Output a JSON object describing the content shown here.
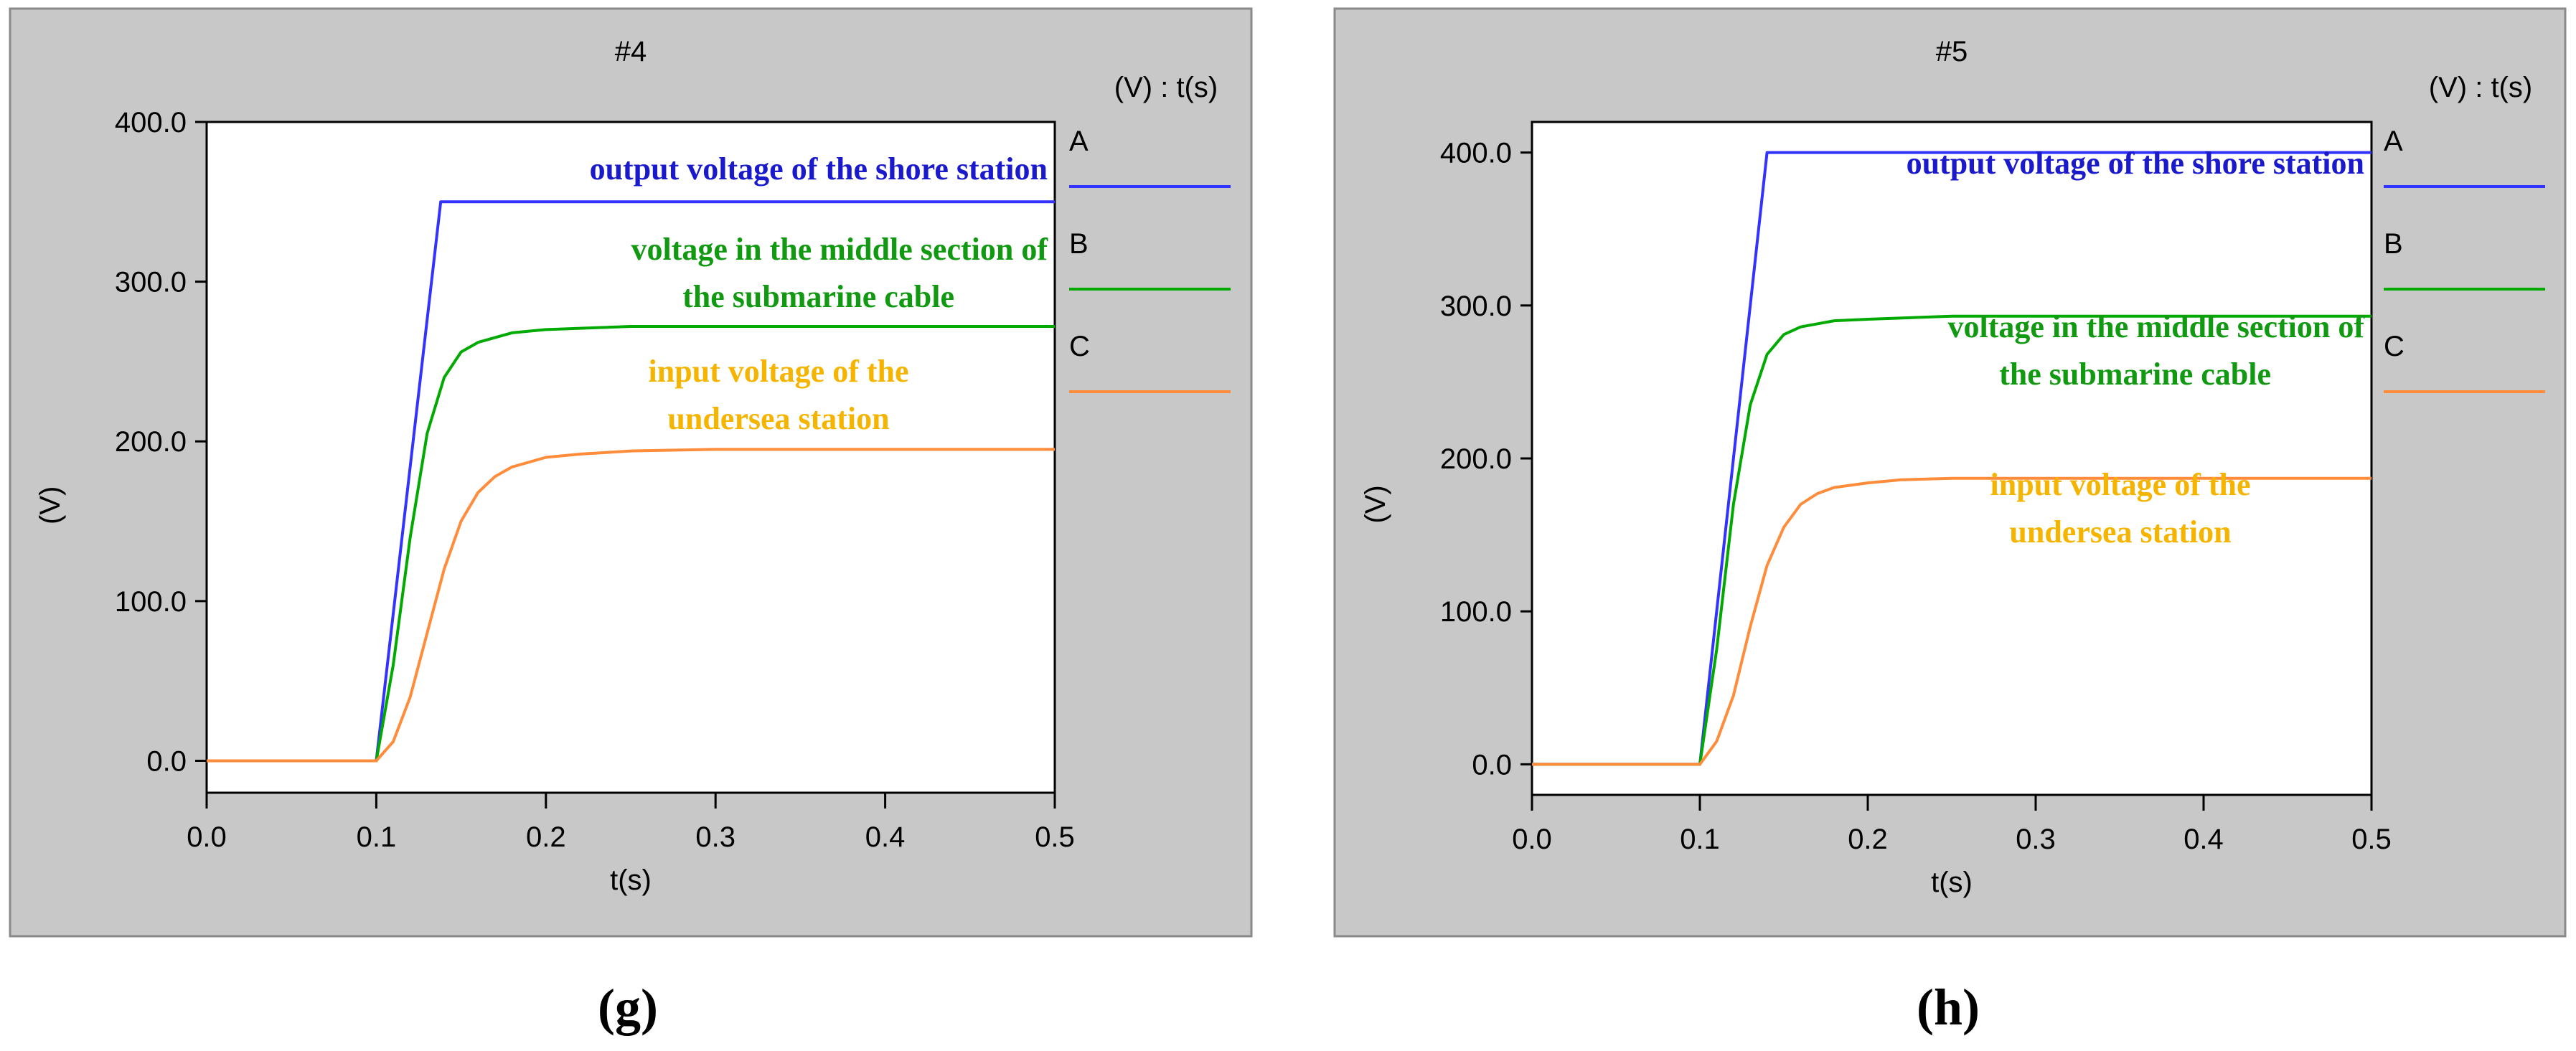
{
  "chart_data": [
    {
      "type": "line",
      "title": "#4",
      "legend_header": "(V) : t(s)",
      "xlabel": "t(s)",
      "ylabel": "(V)",
      "xlim": [
        0.0,
        0.5
      ],
      "ylim": [
        -20,
        400
      ],
      "x_ticks": [
        "0.0",
        "0.1",
        "0.2",
        "0.3",
        "0.4",
        "0.5"
      ],
      "y_ticks": [
        "0.0",
        "100.0",
        "200.0",
        "300.0",
        "400.0"
      ],
      "grid": false,
      "legend_position": "right",
      "subfigure_label": "(g)",
      "series": [
        {
          "name": "A",
          "color": "#3333ff",
          "annotation": [
            "output voltage of the shore station"
          ],
          "x": [
            0.0,
            0.1,
            0.138,
            0.5
          ],
          "y": [
            0,
            0,
            350,
            350
          ]
        },
        {
          "name": "B",
          "color": "#00aa00",
          "annotation": [
            "voltage in the middle section of",
            "the submarine cable"
          ],
          "x": [
            0.0,
            0.1,
            0.11,
            0.12,
            0.13,
            0.14,
            0.15,
            0.16,
            0.18,
            0.2,
            0.25,
            0.3,
            0.5
          ],
          "y": [
            0,
            0,
            60,
            140,
            205,
            240,
            256,
            262,
            268,
            270,
            272,
            272,
            272
          ]
        },
        {
          "name": "C",
          "color": "#ff8c3a",
          "annotation": [
            "input voltage of the",
            "undersea station"
          ],
          "x": [
            0.0,
            0.1,
            0.11,
            0.12,
            0.13,
            0.14,
            0.15,
            0.16,
            0.17,
            0.18,
            0.2,
            0.22,
            0.25,
            0.3,
            0.5
          ],
          "y": [
            0,
            0,
            12,
            40,
            80,
            120,
            150,
            168,
            178,
            184,
            190,
            192,
            194,
            195,
            195
          ]
        }
      ]
    },
    {
      "type": "line",
      "title": "#5",
      "legend_header": "(V) : t(s)",
      "xlabel": "t(s)",
      "ylabel": "(V)",
      "xlim": [
        0.0,
        0.5
      ],
      "ylim": [
        -20,
        420
      ],
      "x_ticks": [
        "0.0",
        "0.1",
        "0.2",
        "0.3",
        "0.4",
        "0.5"
      ],
      "y_ticks": [
        "0.0",
        "100.0",
        "200.0",
        "300.0",
        "400.0"
      ],
      "grid": false,
      "legend_position": "right",
      "subfigure_label": "(h)",
      "series": [
        {
          "name": "A",
          "color": "#3333ff",
          "annotation": [
            "output voltage of the shore station"
          ],
          "x": [
            0.0,
            0.1,
            0.14,
            0.5
          ],
          "y": [
            0,
            0,
            400,
            400
          ]
        },
        {
          "name": "B",
          "color": "#00aa00",
          "annotation": [
            "voltage in the middle section of",
            "the submarine cable"
          ],
          "x": [
            0.0,
            0.1,
            0.11,
            0.12,
            0.13,
            0.14,
            0.15,
            0.16,
            0.18,
            0.2,
            0.25,
            0.3,
            0.5
          ],
          "y": [
            0,
            0,
            75,
            170,
            235,
            268,
            281,
            286,
            290,
            291,
            293,
            293,
            293
          ]
        },
        {
          "name": "C",
          "color": "#ff8c3a",
          "annotation": [
            "input voltage of the",
            "undersea station"
          ],
          "x": [
            0.0,
            0.1,
            0.11,
            0.12,
            0.13,
            0.14,
            0.15,
            0.16,
            0.17,
            0.18,
            0.2,
            0.22,
            0.25,
            0.3,
            0.5
          ],
          "y": [
            0,
            0,
            15,
            45,
            90,
            130,
            155,
            170,
            177,
            181,
            184,
            186,
            187,
            187,
            187
          ]
        }
      ]
    }
  ]
}
